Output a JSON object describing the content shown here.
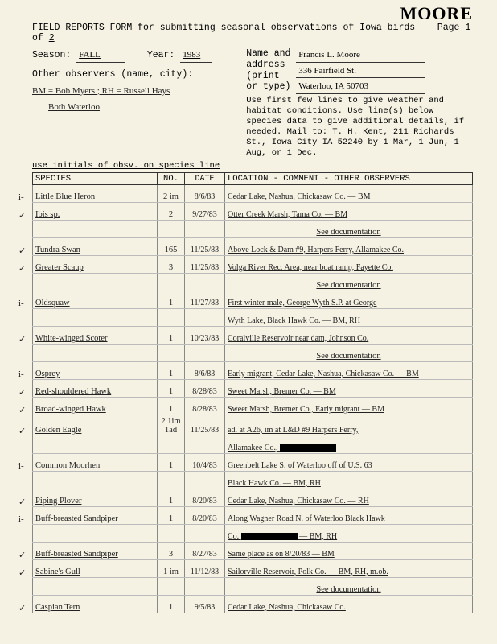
{
  "surname": "MOORE",
  "title": "FIELD REPORTS FORM for submitting seasonal observations of Iowa birds",
  "page": "Page 1 of 2",
  "season_label": "Season:",
  "season": "FALL",
  "year_label": "Year:",
  "year": "1983",
  "name_label": "Name and address (print or type)",
  "name": "Francis L. Moore",
  "address1": "336 Fairfield St.",
  "address2": "Waterloo, IA  50703",
  "other_obs_label": "Other observers (name, city):",
  "other_obs_line1": "BM = Bob Myers ; RH = Russell Hays",
  "other_obs_line2": "Both Waterloo",
  "instructions": "Use first few lines to give weather and habitat conditions. Use line(s) below species data to give additional details, if needed. Mail to: T. H. Kent, 211 Richards St., Iowa City IA 52240 by 1 Mar, 1 Jun, 1 Aug, or 1 Dec.",
  "subhead": "use initials of obsv. on species line",
  "cols": {
    "species": "SPECIES",
    "no": "NO.",
    "date": "DATE",
    "loc": "LOCATION - COMMENT - OTHER OBSERVERS"
  },
  "rows": [
    {
      "chk": "i-",
      "sp": "Little Blue Heron",
      "no": "2 im",
      "dt": "8/6/83",
      "loc": "Cedar Lake, Nashua, Chickasaw Co.        — BM"
    },
    {
      "chk": "✓",
      "sp": "Ibis sp.",
      "no": "2",
      "dt": "9/27/83",
      "loc": "Otter Creek Marsh, Tama Co.              — BM"
    },
    {
      "chk": "",
      "sp": "",
      "no": "",
      "dt": "",
      "loc": "See documentation"
    },
    {
      "chk": "✓",
      "sp": "Tundra Swan",
      "no": "165",
      "dt": "11/25/83",
      "loc": "Above Lock & Dam #9, Harpers Ferry, Allamakee Co."
    },
    {
      "chk": "✓",
      "sp": "Greater Scaup",
      "no": "3",
      "dt": "11/25/83",
      "loc": "Volga River Rec. Area, near boat ramp, Fayette Co."
    },
    {
      "chk": "",
      "sp": "",
      "no": "",
      "dt": "",
      "loc": "See documentation"
    },
    {
      "chk": "i-",
      "sp": "Oldsquaw",
      "no": "1",
      "dt": "11/27/83",
      "loc": "First winter male, George Wyth S.P. at George"
    },
    {
      "chk": "",
      "sp": "",
      "no": "",
      "dt": "",
      "loc": "Wyth Lake, Black Hawk Co.     — BM, RH"
    },
    {
      "chk": "✓",
      "sp": "White-winged Scoter",
      "no": "1",
      "dt": "10/23/83",
      "loc": "Coralville Reservoir near dam, Johnson Co."
    },
    {
      "chk": "",
      "sp": "",
      "no": "",
      "dt": "",
      "loc": "See documentation"
    },
    {
      "chk": "i-",
      "sp": "Osprey",
      "no": "1",
      "dt": "8/6/83",
      "loc": "Early migrant, Cedar Lake, Nashua, Chickasaw Co. — BM"
    },
    {
      "chk": "✓",
      "sp": "Red-shouldered Hawk",
      "no": "1",
      "dt": "8/28/83",
      "loc": "Sweet Marsh, Bremer Co.               — BM"
    },
    {
      "chk": "✓",
      "sp": "Broad-winged Hawk",
      "no": "1",
      "dt": "8/28/83",
      "loc": "Sweet Marsh, Bremer Co., Early migrant — BM"
    },
    {
      "chk": "✓",
      "sp": "Golden Eagle",
      "no": "2 1im 1ad",
      "dt": "11/25/83",
      "loc": "ad. at A26, im at L&D #9 Harpers Ferry,"
    },
    {
      "chk": "",
      "sp": "",
      "no": "",
      "dt": "",
      "loc": "Allamakee Co.,  ▬▬▬▬▬▬▬▬▬▬"
    },
    {
      "chk": "i-",
      "sp": "Common Moorhen",
      "no": "1",
      "dt": "10/4/83",
      "loc": "Greenbelt Lake S. of Waterloo off of U.S. 63"
    },
    {
      "chk": "",
      "sp": "",
      "no": "",
      "dt": "",
      "loc": "Black Hawk Co.                — BM, RH"
    },
    {
      "chk": "✓",
      "sp": "Piping Plover",
      "no": "1",
      "dt": "8/20/83",
      "loc": "Cedar Lake, Nashua, Chickasaw Co.    — RH"
    },
    {
      "chk": "i-",
      "sp": "Buff-breasted Sandpiper",
      "no": "1",
      "dt": "8/20/83",
      "loc": "Along Wagner Road N. of Waterloo Black Hawk"
    },
    {
      "chk": "",
      "sp": "",
      "no": "",
      "dt": "",
      "loc": "Co.   ▬▬▬▬▬▬▬▬          — BM, RH"
    },
    {
      "chk": "✓",
      "sp": "Buff-breasted Sandpiper",
      "no": "3",
      "dt": "8/27/83",
      "loc": "Same place as on 8/20/83          — BM"
    },
    {
      "chk": "✓",
      "sp": "Sabine's Gull",
      "no": "1 im",
      "dt": "11/12/83",
      "loc": "Sailorville Reservoir, Polk Co.  — BM, RH, m.ob."
    },
    {
      "chk": "",
      "sp": "",
      "no": "",
      "dt": "",
      "loc": "See documentation"
    },
    {
      "chk": "✓",
      "sp": "Caspian Tern",
      "no": "1",
      "dt": "9/5/83",
      "loc": "Cedar Lake, Nashua, Chickasaw Co."
    }
  ]
}
